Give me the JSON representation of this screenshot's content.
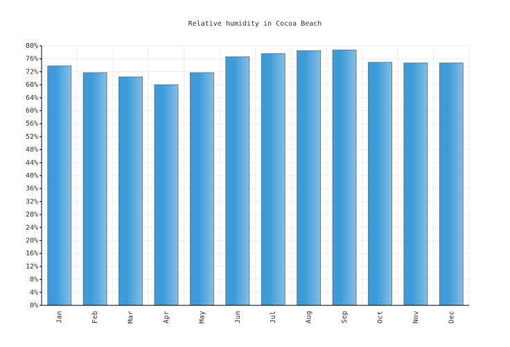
{
  "chart_data": {
    "type": "bar",
    "title": "Relative humidity in Cocoa Beach",
    "categories": [
      "Jan",
      "Feb",
      "Mar",
      "Apr",
      "May",
      "Jun",
      "Jul",
      "Aug",
      "Sep",
      "Oct",
      "Nov",
      "Dec"
    ],
    "values": [
      73.8,
      71.7,
      70.4,
      68.0,
      71.7,
      76.6,
      77.6,
      78.5,
      78.7,
      74.9,
      74.7,
      74.7
    ],
    "color": "#3d9bd8",
    "ylim": [
      0,
      80
    ],
    "yticks": [
      {
        "value": 0,
        "label": "0%"
      },
      {
        "value": 4,
        "label": "4%"
      },
      {
        "value": 8,
        "label": "8%"
      },
      {
        "value": 12,
        "label": "12%"
      },
      {
        "value": 16,
        "label": "16%"
      },
      {
        "value": 20,
        "label": "20%"
      },
      {
        "value": 24,
        "label": "24%"
      },
      {
        "value": 28,
        "label": "28%"
      },
      {
        "value": 32,
        "label": "32%"
      },
      {
        "value": 36,
        "label": "36%"
      },
      {
        "value": 40,
        "label": "40%"
      },
      {
        "value": 44,
        "label": "44%"
      },
      {
        "value": 48,
        "label": "48%"
      },
      {
        "value": 52,
        "label": "52%"
      },
      {
        "value": 56,
        "label": "56%"
      },
      {
        "value": 60,
        "label": "60%"
      },
      {
        "value": 64,
        "label": "64%"
      },
      {
        "value": 68,
        "label": "68%"
      },
      {
        "value": 72,
        "label": "72%"
      },
      {
        "value": 76,
        "label": "76%"
      },
      {
        "value": 80,
        "label": "80%"
      }
    ],
    "grid": true
  }
}
